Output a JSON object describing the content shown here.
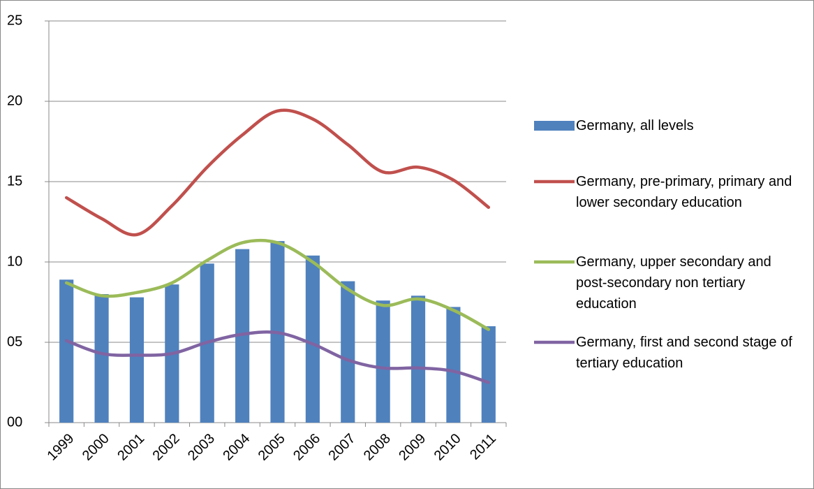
{
  "chart_data": {
    "type": "bar",
    "categories": [
      "1999",
      "2000",
      "2001",
      "2002",
      "2003",
      "2004",
      "2005",
      "2006",
      "2007",
      "2008",
      "2009",
      "2010",
      "2011"
    ],
    "series": [
      {
        "name": "Germany, all levels",
        "type": "bar",
        "color": "#4f81bd",
        "values": [
          8.9,
          8.0,
          7.8,
          8.6,
          9.9,
          10.8,
          11.3,
          10.4,
          8.8,
          7.6,
          7.9,
          7.2,
          6.0
        ]
      },
      {
        "name": "Germany, pre-primary, primary and lower secondary education",
        "type": "line",
        "color": "#c0504d",
        "values": [
          14.0,
          12.7,
          11.7,
          13.5,
          15.9,
          17.9,
          19.4,
          18.9,
          17.3,
          15.6,
          15.9,
          15.1,
          13.4
        ]
      },
      {
        "name": "Germany, upper secondary and post-secondary non tertiary education",
        "type": "line",
        "color": "#9bbb59",
        "values": [
          8.7,
          7.9,
          8.1,
          8.7,
          10.1,
          11.2,
          11.2,
          10.0,
          8.3,
          7.3,
          7.7,
          7.0,
          5.8
        ]
      },
      {
        "name": "Germany, first and second stage of tertiary education",
        "type": "line",
        "color": "#8064a2",
        "values": [
          5.1,
          4.3,
          4.2,
          4.3,
          5.0,
          5.5,
          5.6,
          4.9,
          3.9,
          3.4,
          3.4,
          3.2,
          2.5
        ]
      }
    ],
    "ylim": [
      0,
      25
    ],
    "yticks": [
      {
        "value": 0,
        "label": "00"
      },
      {
        "value": 5,
        "label": "05"
      },
      10,
      15,
      20,
      25
    ],
    "grid": true,
    "legend": "right"
  }
}
